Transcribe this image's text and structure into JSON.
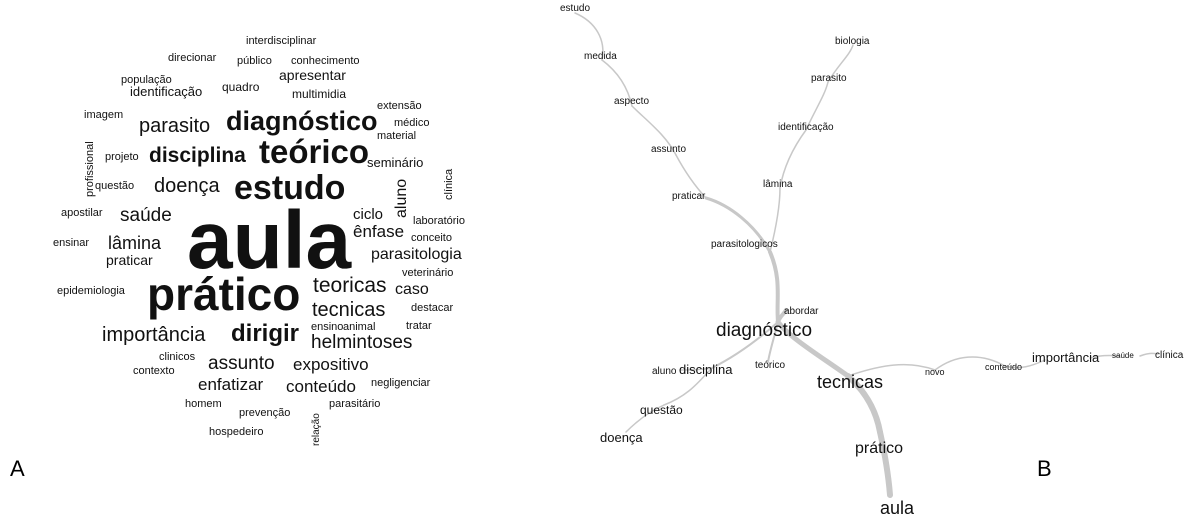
{
  "panel_a": {
    "label": "A",
    "words": [
      "aula",
      "prático",
      "estudo",
      "teórico",
      "diagnóstico",
      "disciplina",
      "dirigir",
      "importância",
      "helmintoses",
      "tecnicas",
      "teoricas",
      "assunto",
      "parasito",
      "doença",
      "saúde",
      "lâmina",
      "enfatizar",
      "conteúdo",
      "expositivo",
      "ênfase",
      "parasitologia",
      "caso",
      "aluno",
      "ciclo",
      "apresentar",
      "seminário",
      "praticar",
      "quadro",
      "multimidia",
      "identificação",
      "população",
      "direcionar",
      "público",
      "conhecimento",
      "interdisciplinar",
      "imagem",
      "projeto",
      "questão",
      "profissional",
      "apostilar",
      "ensinar",
      "epidemiologia",
      "extensão",
      "médico",
      "material",
      "clínica",
      "laboratório",
      "conceito",
      "veterinário",
      "destacar",
      "tratar",
      "ensino",
      "animal",
      "clinicos",
      "contexto",
      "negligenciar",
      "homem",
      "prevenção",
      "relação",
      "parasitário",
      "hospedeiro"
    ]
  },
  "panel_b": {
    "label": "B",
    "nodes": [
      "aula",
      "prático",
      "tecnicas",
      "diagnóstico",
      "disciplina",
      "aluno",
      "questão",
      "doença",
      "teórico",
      "abordar",
      "parasitologicos",
      "praticar",
      "assunto",
      "aspecto",
      "medida",
      "estudo",
      "lâmina",
      "identificação",
      "parasito",
      "biologia",
      "novo",
      "conteúdo",
      "importância",
      "saúde",
      "clínica"
    ]
  }
}
